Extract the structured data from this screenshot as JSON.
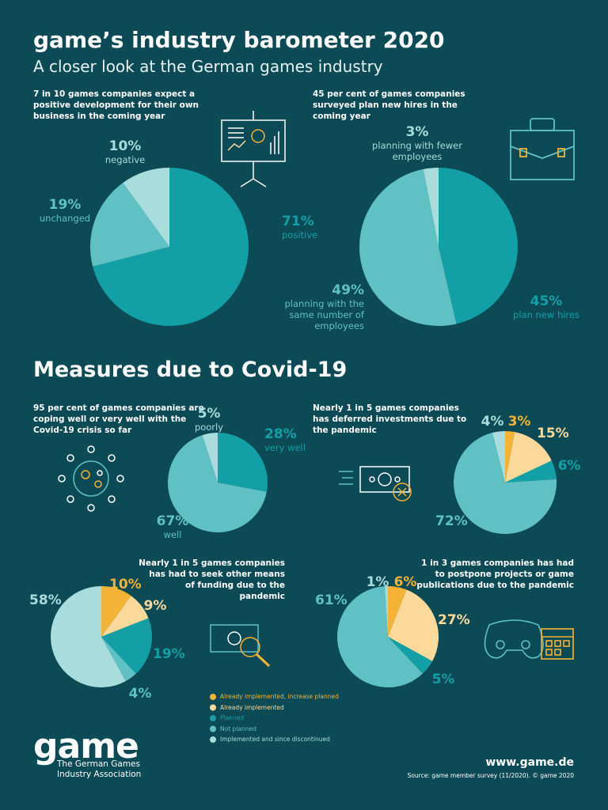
{
  "title": "game’s industry barometer 2020",
  "subtitle": "A closer look at the German games industry",
  "section_title": "Measures due to Covid-19",
  "chart_data": [
    {
      "type": "pie",
      "title": "7 in 10 games companies expect a positive development for their own business in the coming year",
      "categories": [
        "positive",
        "unchanged",
        "negative"
      ],
      "values": [
        71,
        19,
        10
      ],
      "value_labels": [
        "71%",
        "19%",
        "10%"
      ],
      "colors": [
        "#12a0a6",
        "#5fc1c4",
        "#a9dcdc"
      ]
    },
    {
      "type": "pie",
      "title": "45 per cent of games companies surveyed plan new hires in the coming year",
      "categories": [
        "plan new hires",
        "planning with the same number of employees",
        "planning with fewer employees"
      ],
      "values": [
        45,
        49,
        3
      ],
      "value_labels": [
        "45%",
        "49%",
        "3%"
      ],
      "colors": [
        "#12a0a6",
        "#5fc1c4",
        "#a9dcdc"
      ]
    },
    {
      "type": "pie",
      "title": "95 per cent of games companies are coping well or very well with the Covid-19 crisis so far",
      "categories": [
        "very well",
        "well",
        "poorly"
      ],
      "values": [
        28,
        67,
        5
      ],
      "value_labels": [
        "28%",
        "67%",
        "5%"
      ],
      "colors": [
        "#12a0a6",
        "#5fc1c4",
        "#a9dcdc"
      ]
    },
    {
      "type": "pie",
      "title": "Nearly 1 in 5 games companies has deferred investments due to the pandemic",
      "values": [
        3,
        15,
        6,
        72,
        4
      ],
      "value_labels": [
        "3%",
        "15%",
        "6%",
        "72%",
        "4%"
      ],
      "colors": [
        "#f5b335",
        "#fbd99a",
        "#12a0a6",
        "#5fc1c4",
        "#a9dcdc"
      ]
    },
    {
      "type": "pie",
      "title": "Nearly 1 in 5 games companies has had to seek other means of funding due to the pandemic",
      "values": [
        10,
        9,
        19,
        4,
        58
      ],
      "value_labels": [
        "10%",
        "9%",
        "19%",
        "4%",
        "58%"
      ],
      "colors": [
        "#f5b335",
        "#fbd99a",
        "#12a0a6",
        "#5fc1c4",
        "#a9dcdc"
      ]
    },
    {
      "type": "pie",
      "title": "1 in 3 games companies has had to postpone projects or game publications due to the pandemic",
      "values": [
        6,
        27,
        5,
        61,
        1
      ],
      "value_labels": [
        "6%",
        "27%",
        "5%",
        "61%",
        "1%"
      ],
      "colors": [
        "#f5b335",
        "#fbd99a",
        "#12a0a6",
        "#5fc1c4",
        "#a9dcdc"
      ]
    }
  ],
  "legend": [
    {
      "name": "Already implemented, increase planned",
      "color": "#f5b335"
    },
    {
      "name": "Already implemented",
      "color": "#fbd99a"
    },
    {
      "name": "Planned",
      "color": "#12a0a6"
    },
    {
      "name": "Not planned",
      "color": "#5fc1c4"
    },
    {
      "name": "Implemented and since discontinued",
      "color": "#a9dcdc"
    }
  ],
  "logo": {
    "name": "game",
    "tagline": "The German Games Industry Association"
  },
  "footer": {
    "url": "www.game.de",
    "source": "Source: game member survey (11/2020). © game 2020"
  }
}
